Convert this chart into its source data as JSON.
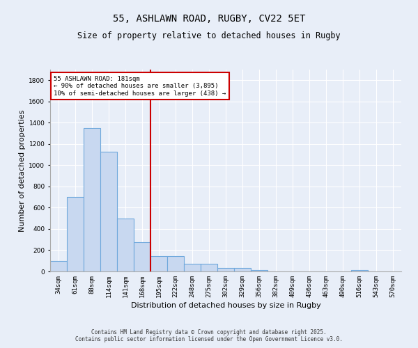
{
  "title": "55, ASHLAWN ROAD, RUGBY, CV22 5ET",
  "subtitle": "Size of property relative to detached houses in Rugby",
  "xlabel": "Distribution of detached houses by size in Rugby",
  "ylabel": "Number of detached properties",
  "categories": [
    "34sqm",
    "61sqm",
    "88sqm",
    "114sqm",
    "141sqm",
    "168sqm",
    "195sqm",
    "222sqm",
    "248sqm",
    "275sqm",
    "302sqm",
    "329sqm",
    "356sqm",
    "382sqm",
    "409sqm",
    "436sqm",
    "463sqm",
    "490sqm",
    "516sqm",
    "543sqm",
    "570sqm"
  ],
  "values": [
    100,
    700,
    1350,
    1130,
    500,
    275,
    145,
    145,
    75,
    75,
    30,
    30,
    15,
    0,
    0,
    0,
    0,
    0,
    15,
    0,
    0
  ],
  "bar_color": "#c8d8f0",
  "bar_edge_color": "#6fa8dc",
  "ylim": [
    0,
    1900
  ],
  "yticks": [
    0,
    200,
    400,
    600,
    800,
    1000,
    1200,
    1400,
    1600,
    1800
  ],
  "vline_index": 6,
  "vline_color": "#cc0000",
  "annotation_text": "55 ASHLAWN ROAD: 181sqm\n← 90% of detached houses are smaller (3,895)\n10% of semi-detached houses are larger (438) →",
  "annotation_box_color": "#ffffff",
  "annotation_box_edge_color": "#cc0000",
  "bg_color": "#e8eef8",
  "plot_bg_color": "#e8eef8",
  "footer_line1": "Contains HM Land Registry data © Crown copyright and database right 2025.",
  "footer_line2": "Contains public sector information licensed under the Open Government Licence v3.0.",
  "title_fontsize": 10,
  "subtitle_fontsize": 8.5,
  "tick_fontsize": 6.5,
  "ylabel_fontsize": 8,
  "xlabel_fontsize": 8,
  "annotation_fontsize": 6.5,
  "footer_fontsize": 5.5
}
